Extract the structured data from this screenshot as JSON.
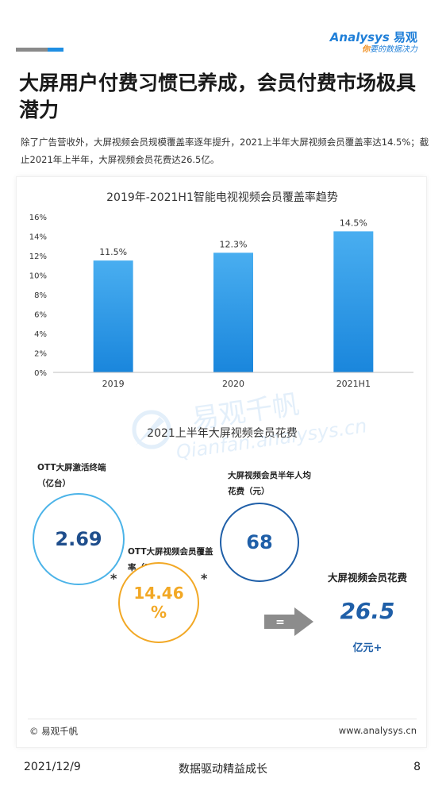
{
  "header": {
    "logo_name": "nalysys",
    "logo_a": "A",
    "logo_cn": "易观",
    "logo_slogan_hl": "你",
    "logo_slogan_rest": "要的数据决力"
  },
  "page_title": "大屏用户付费习惯已养成，会员付费市场极具潜力",
  "intro": "除了广告营收外，大屏视频会员规模覆盖率逐年提升，2021上半年大屏视频会员覆盖率达14.5%；截止2021年上半年，大屏视频会员花费达26.5亿。",
  "chart_data": {
    "type": "bar",
    "title": "2019年-2021H1智能电视视频会员覆盖率趋势",
    "categories": [
      "2019",
      "2020",
      "2021H1"
    ],
    "values": [
      11.5,
      12.3,
      14.5
    ],
    "value_labels": [
      "11.5%",
      "12.3%",
      "14.5%"
    ],
    "ylim": [
      0,
      16
    ],
    "yticks": [
      0,
      2,
      4,
      6,
      8,
      10,
      12,
      14,
      16
    ],
    "ytick_labels": [
      "0%",
      "2%",
      "4%",
      "6%",
      "8%",
      "10%",
      "12%",
      "14%",
      "16%"
    ],
    "xlabel": "",
    "ylabel": "",
    "grid": false,
    "colors": {
      "bar_top": "#49aef0",
      "bar_bottom": "#1a86dc"
    }
  },
  "infographic": {
    "title": "2021上半年大屏视频会员花费",
    "ott_label": "OTT大屏激活终端（亿台）",
    "ott_value": "2.69",
    "coverage_label": "OTT大屏视频会员覆盖率（%）",
    "coverage_value_num": "14.46",
    "coverage_value_unit": "%",
    "spend_label": "大屏视频会员半年人均花费（元）",
    "spend_value": "68",
    "multiply": "*",
    "equals": "=",
    "result_label": "大屏视频会员花费",
    "result_value": "26.5",
    "result_unit": "亿元+"
  },
  "watermark": {
    "cn": "易观千帆",
    "en": "Qianfan.analysys.cn"
  },
  "card_footer": {
    "copyright": "© 易观千帆",
    "site": "www.analysys.cn"
  },
  "footer": {
    "date": "2021/12/9",
    "slogan": "数据驱动精益成长",
    "page": "8"
  }
}
